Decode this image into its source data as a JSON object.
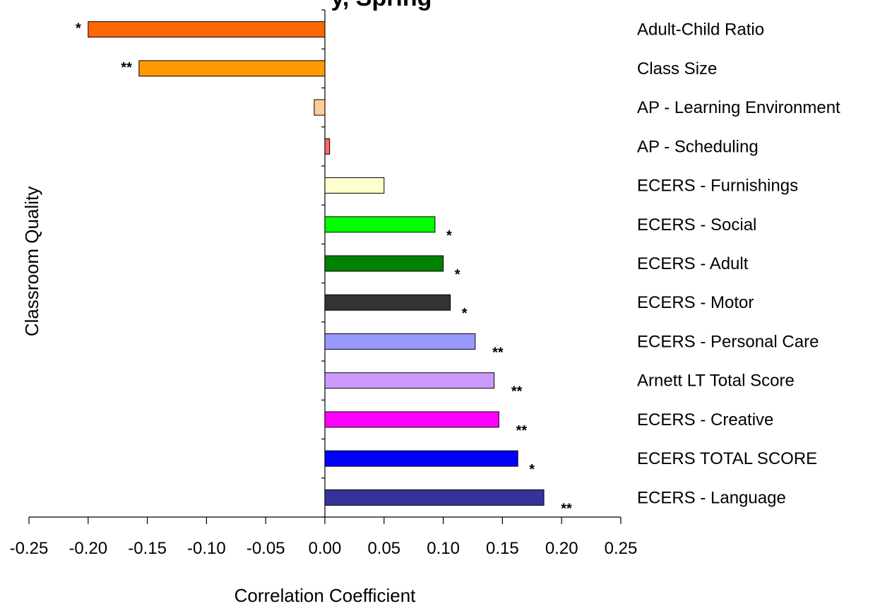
{
  "chart_data": {
    "type": "bar",
    "orientation": "horizontal",
    "title": "y, Spring",
    "xlabel": "Correlation Coefficient",
    "ylabel": "Classroom Quality",
    "xlim": [
      -0.25,
      0.25
    ],
    "xticks": [
      "-0.25",
      "-0.20",
      "-0.15",
      "-0.10",
      "-0.05",
      "0.00",
      "0.05",
      "0.10",
      "0.15",
      "0.20",
      "0.25"
    ],
    "grid": false,
    "legend": "none",
    "categories": [
      "Adult-Child Ratio",
      "Class Size",
      "AP - Learning Environment",
      "AP - Scheduling",
      "ECERS - Furnishings",
      "ECERS - Social",
      "ECERS - Adult",
      "ECERS - Motor",
      "ECERS - Personal Care",
      "Arnett LT Total Score",
      "ECERS - Creative",
      "ECERS TOTAL SCORE",
      "ECERS - Language"
    ],
    "values": [
      -0.2,
      -0.157,
      -0.009,
      0.004,
      0.05,
      0.093,
      0.1,
      0.106,
      0.127,
      0.143,
      0.147,
      0.163,
      0.185
    ],
    "significance": [
      "*",
      "**",
      "",
      "",
      "",
      "*",
      "*",
      "*",
      "**",
      "**",
      "**",
      "*",
      "**"
    ],
    "colors": [
      "#FF6600",
      "#FF9900",
      "#FFCC99",
      "#FF6666",
      "#FFFFCC",
      "#00FF00",
      "#008000",
      "#333333",
      "#9999FF",
      "#CC99FF",
      "#FF00FF",
      "#0000FF",
      "#333399"
    ]
  }
}
